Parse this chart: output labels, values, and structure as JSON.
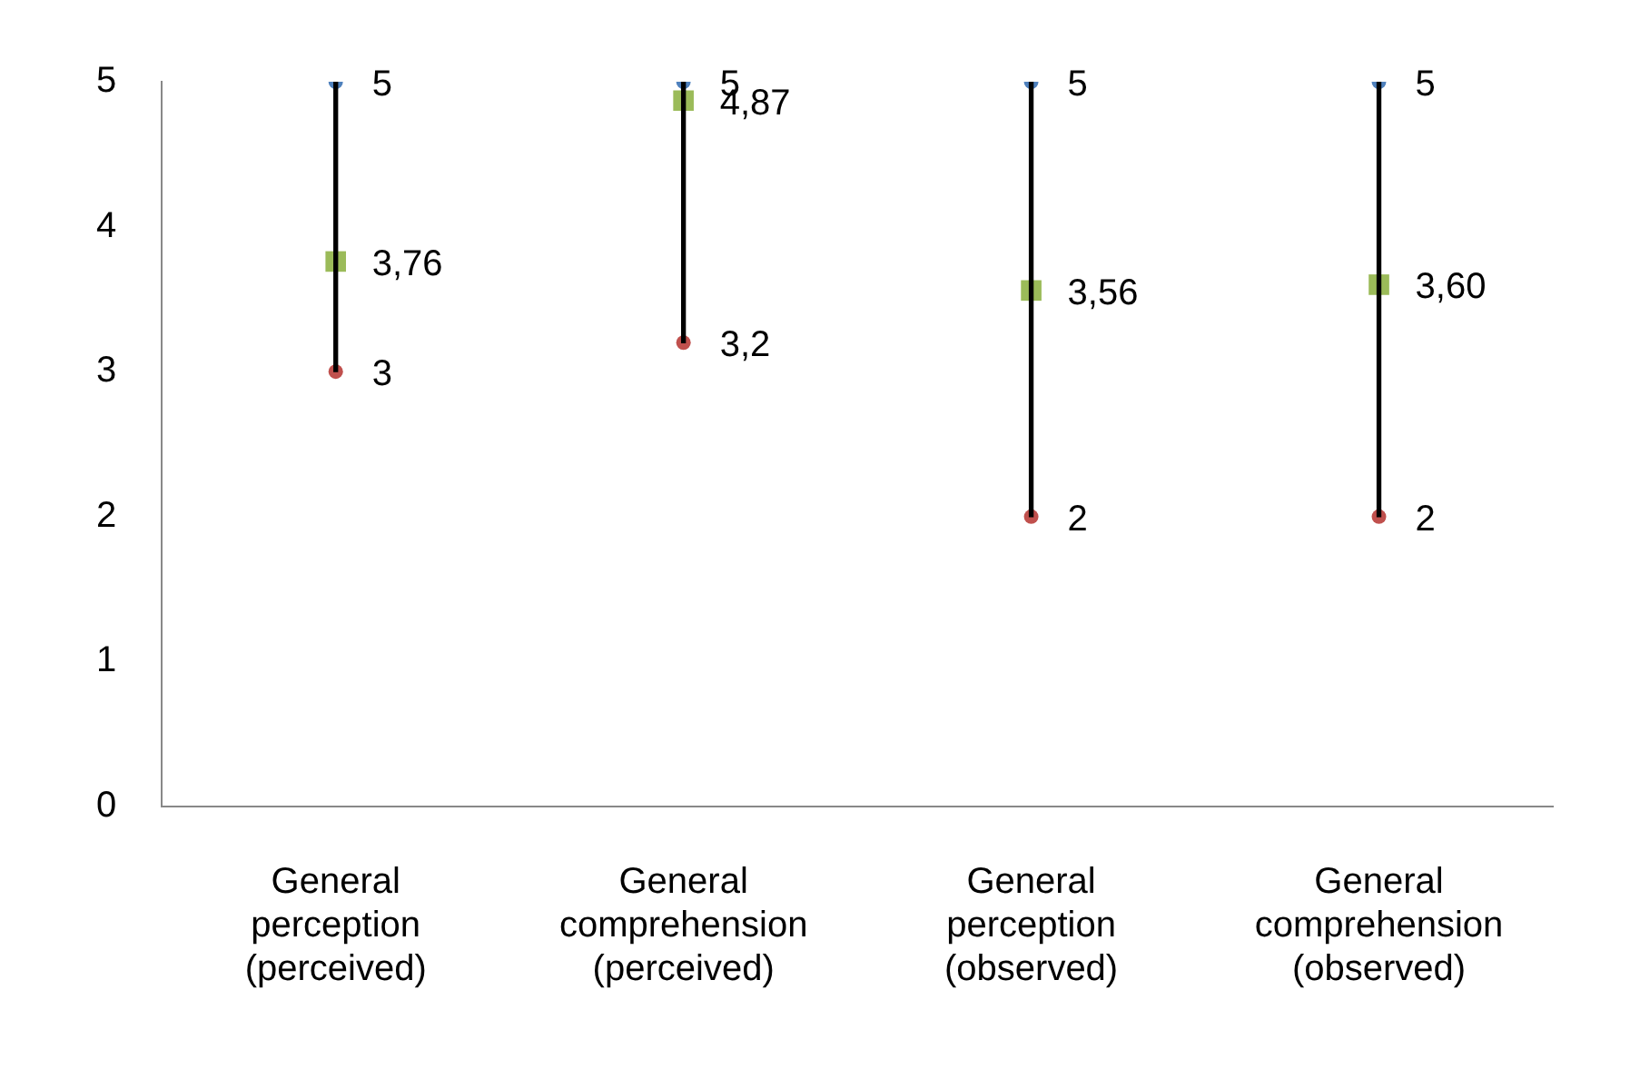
{
  "chart_data": {
    "type": "scatter",
    "categories": [
      "General perception (perceived)",
      "General comprehension (perceived)",
      "General perception (observed)",
      "General comprehension (observed)"
    ],
    "series": [
      {
        "type": "bar",
        "color": "#000000",
        "base": [
          3,
          3.2,
          2,
          2
        ],
        "values": [
          2,
          1.8,
          3,
          3
        ]
      },
      {
        "marker": "circle",
        "color": "#4f81bd",
        "x": [
          "General perception (perceived)",
          "General comprehension (perceived)",
          "General perception (observed)",
          "General comprehension (observed)"
        ],
        "values": [
          5,
          5,
          5,
          5
        ],
        "value_labels": [
          "5",
          "5",
          "5",
          "5"
        ]
      },
      {
        "marker": "circle",
        "color": "#c0504d",
        "x": [
          "General perception (perceived)",
          "General comprehension (perceived)",
          "General perception (observed)",
          "General comprehension (observed)"
        ],
        "values": [
          3,
          3.2,
          2,
          2
        ],
        "value_labels": [
          "3",
          "3,2",
          "2",
          "2"
        ]
      },
      {
        "marker": "square",
        "color": "#9bbb59",
        "x": [
          "General perception (perceived)",
          "General comprehension (perceived)",
          "General perception (observed)",
          "General comprehension (observed)"
        ],
        "values": [
          3.76,
          4.87,
          3.56,
          3.6
        ],
        "value_labels": [
          "3,76",
          "4,87",
          "3,56",
          "3,60"
        ]
      }
    ],
    "ylim": [
      0,
      5
    ],
    "yticks": [
      0,
      1,
      2,
      3,
      4,
      5
    ],
    "grid": false,
    "legend": false
  }
}
